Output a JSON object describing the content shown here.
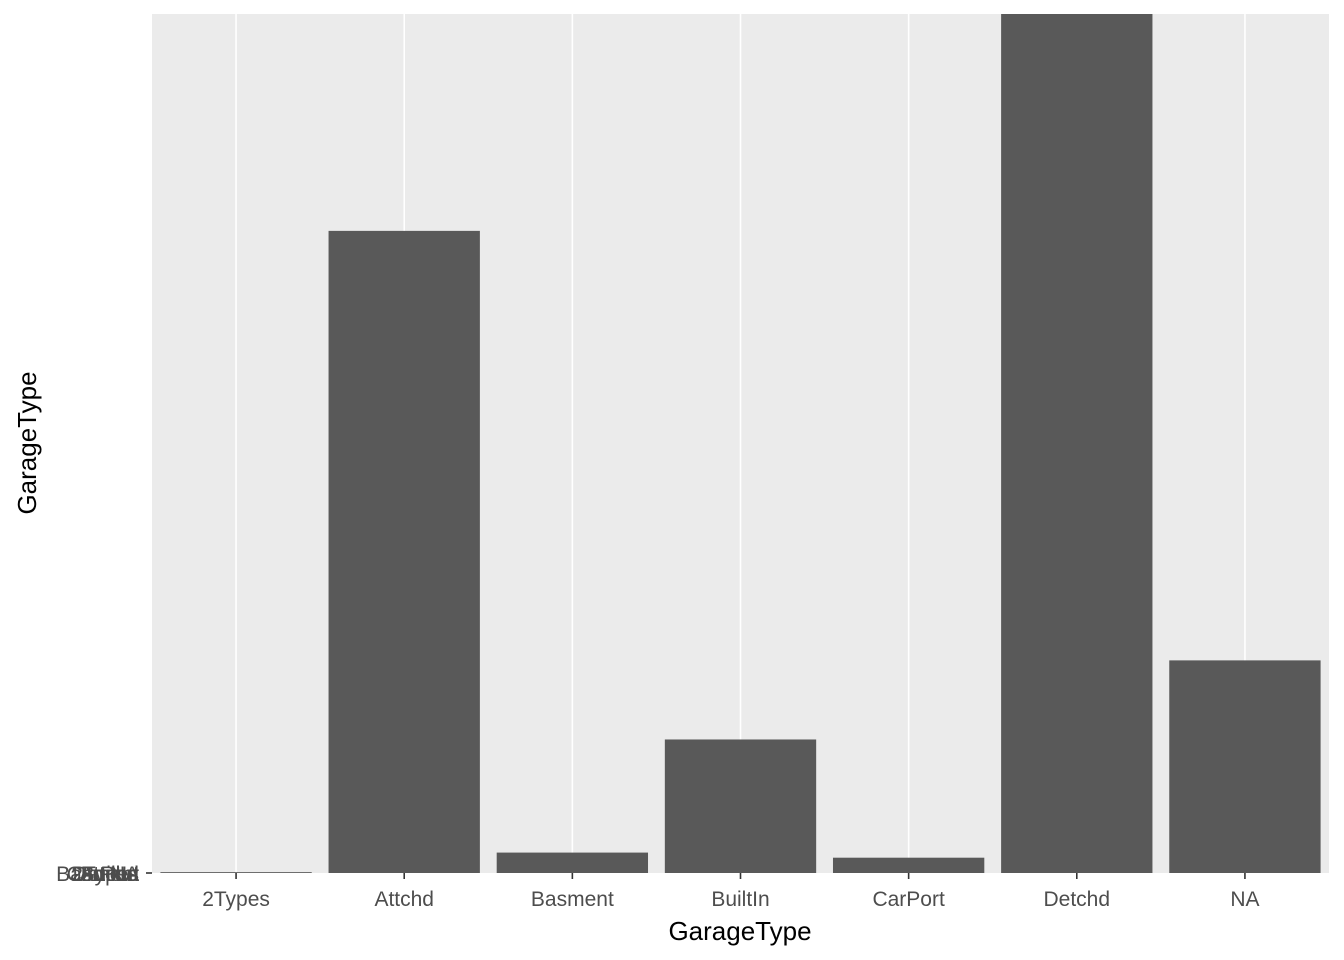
{
  "chart_data": {
    "type": "bar",
    "categories": [
      "2Types",
      "Attchd",
      "Basment",
      "BuiltIn",
      "CarPort",
      "Detchd",
      "NA"
    ],
    "values": [
      1,
      755,
      24,
      157,
      18,
      1010,
      250
    ],
    "xlabel": "GarageType",
    "ylabel": "GarageType",
    "ylim": [
      0,
      1010
    ],
    "y_tick_labels": [
      "2Types",
      "Attchd",
      "Basment",
      "BuiltIn",
      "CarPort",
      "Detchd",
      "NA"
    ],
    "grid": true,
    "colors": {
      "bar": "#595959",
      "panel": "#ebebeb",
      "grid": "#ffffff",
      "tick": "#333333",
      "tick_text": "#4d4d4d"
    }
  }
}
